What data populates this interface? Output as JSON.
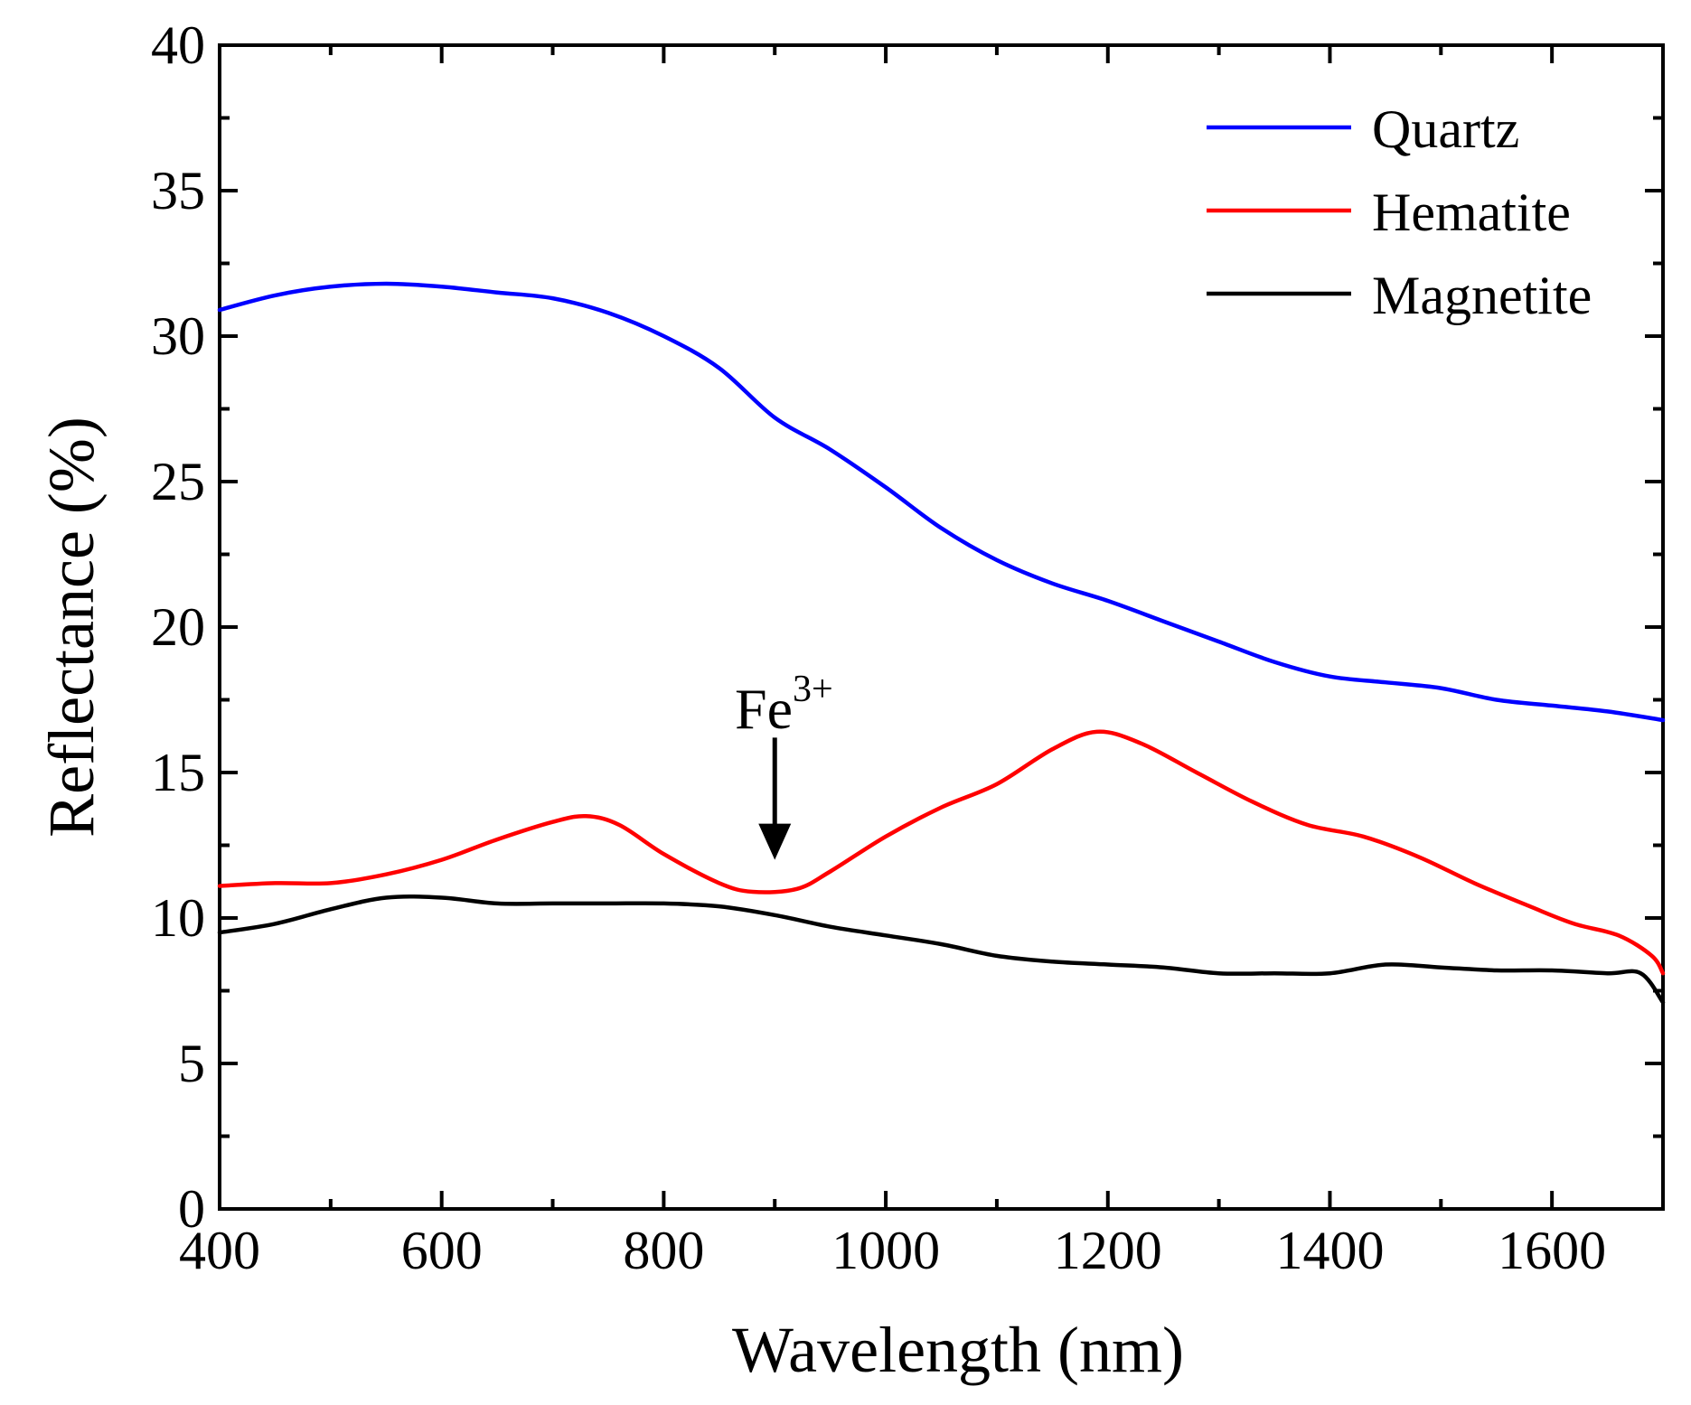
{
  "chart_data": {
    "type": "line",
    "title": "",
    "xlabel": "Wavelength (nm)",
    "ylabel": "Reflectance (%)",
    "xlim": [
      400,
      1700
    ],
    "ylim": [
      0,
      40
    ],
    "x_ticks": [
      400,
      600,
      800,
      1000,
      1200,
      1400,
      1600
    ],
    "y_ticks": [
      0,
      5,
      10,
      15,
      20,
      25,
      30,
      35,
      40
    ],
    "grid": false,
    "legend_position": "top-right",
    "series": [
      {
        "name": "Quartz",
        "color": "#0000ff",
        "x": [
          400,
          450,
          500,
          550,
          600,
          650,
          700,
          750,
          800,
          850,
          900,
          950,
          1000,
          1050,
          1100,
          1150,
          1200,
          1250,
          1300,
          1350,
          1400,
          1450,
          1500,
          1550,
          1600,
          1650,
          1700
        ],
        "y": [
          30.9,
          31.4,
          31.7,
          31.8,
          31.7,
          31.5,
          31.3,
          30.8,
          30.0,
          28.9,
          27.2,
          26.1,
          24.8,
          23.4,
          22.3,
          21.5,
          20.9,
          20.2,
          19.5,
          18.8,
          18.3,
          18.1,
          17.9,
          17.5,
          17.3,
          17.1,
          16.8
        ]
      },
      {
        "name": "Hematite",
        "color": "#ff0000",
        "x": [
          400,
          450,
          500,
          550,
          600,
          650,
          700,
          730,
          760,
          800,
          850,
          880,
          920,
          950,
          1000,
          1050,
          1100,
          1150,
          1190,
          1230,
          1280,
          1330,
          1380,
          1430,
          1480,
          1530,
          1580,
          1620,
          1660,
          1690,
          1700
        ],
        "y": [
          11.1,
          11.2,
          11.2,
          11.5,
          12.0,
          12.7,
          13.3,
          13.5,
          13.2,
          12.2,
          11.2,
          10.9,
          11.0,
          11.6,
          12.8,
          13.8,
          14.6,
          15.8,
          16.4,
          16.0,
          15.0,
          14.0,
          13.2,
          12.8,
          12.1,
          11.2,
          10.4,
          9.8,
          9.4,
          8.7,
          8.1
        ]
      },
      {
        "name": "Magnetite",
        "color": "#000000",
        "x": [
          400,
          450,
          500,
          550,
          600,
          650,
          700,
          750,
          800,
          850,
          900,
          950,
          1000,
          1050,
          1100,
          1150,
          1200,
          1250,
          1300,
          1350,
          1400,
          1450,
          1500,
          1550,
          1600,
          1650,
          1680,
          1700
        ],
        "y": [
          9.5,
          9.8,
          10.3,
          10.7,
          10.7,
          10.5,
          10.5,
          10.5,
          10.5,
          10.4,
          10.1,
          9.7,
          9.4,
          9.1,
          8.7,
          8.5,
          8.4,
          8.3,
          8.1,
          8.1,
          8.1,
          8.4,
          8.3,
          8.2,
          8.2,
          8.1,
          8.1,
          7.1
        ]
      }
    ],
    "annotations": [
      {
        "text": "Fe",
        "superscript": "3+",
        "arrow_x": 900,
        "arrow_tip_y": 12.0,
        "arrow_tail_y": 16.2
      }
    ]
  }
}
